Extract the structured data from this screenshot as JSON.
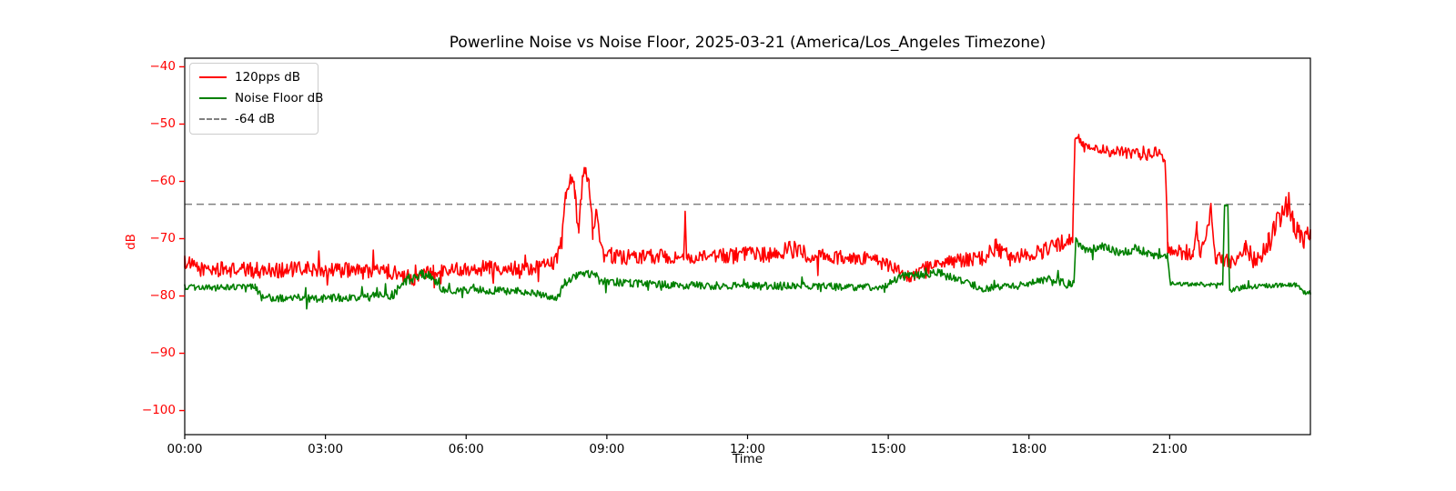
{
  "figure": {
    "background": "#ffffff"
  },
  "chart_data": {
    "type": "line",
    "title": "Powerline Noise vs Noise Floor, 2025-03-21 (America/Los_Angeles Timezone)",
    "xlabel": "Time",
    "ylabel": "dB",
    "x_unit": "hours_local",
    "xlim": [
      0,
      24
    ],
    "ylim": [
      -104.2,
      -38.5
    ],
    "grid": false,
    "x_tick_color": "#000000",
    "y_tick_color": "#ff0000",
    "axis_color": "#000000",
    "x_ticks": [
      {
        "t": 0,
        "label": "00:00"
      },
      {
        "t": 3,
        "label": "03:00"
      },
      {
        "t": 6,
        "label": "06:00"
      },
      {
        "t": 9,
        "label": "09:00"
      },
      {
        "t": 12,
        "label": "12:00"
      },
      {
        "t": 15,
        "label": "15:00"
      },
      {
        "t": 18,
        "label": "18:00"
      },
      {
        "t": 21,
        "label": "21:00"
      }
    ],
    "y_ticks": [
      {
        "v": -40,
        "label": "−40"
      },
      {
        "v": -50,
        "label": "−50"
      },
      {
        "v": -60,
        "label": "−60"
      },
      {
        "v": -70,
        "label": "−70"
      },
      {
        "v": -80,
        "label": "−80"
      },
      {
        "v": -90,
        "label": "−90"
      },
      {
        "v": -100,
        "label": "−100"
      }
    ],
    "threshold_line": {
      "value": -64,
      "color": "#808080",
      "style": "dashed",
      "label": "-64 dB"
    },
    "legend": {
      "position": "upper-left",
      "entries": [
        {
          "label": "120pps dB",
          "color": "#ff0000",
          "style": "solid"
        },
        {
          "label": "Noise Floor dB",
          "color": "#008000",
          "style": "solid"
        },
        {
          "label": "-64 dB",
          "color": "#808080",
          "style": "dashed"
        }
      ]
    },
    "sampling": {
      "dt_hours": 0.02,
      "seed": 1234
    },
    "series": [
      {
        "name": "120pps dB",
        "color": "#ff0000",
        "style": "solid",
        "keyframes_format": [
          "time_hours",
          "dB",
          "noise_halfamp_dB"
        ],
        "keyframes": [
          [
            0.0,
            -74.0,
            1.2
          ],
          [
            0.3,
            -75.3,
            1.3
          ],
          [
            1.5,
            -75.5,
            1.4
          ],
          [
            3.0,
            -75.3,
            1.4
          ],
          [
            4.4,
            -75.8,
            1.3
          ],
          [
            4.9,
            -77.0,
            1.2
          ],
          [
            5.3,
            -75.5,
            1.2
          ],
          [
            6.5,
            -75.0,
            1.3
          ],
          [
            7.4,
            -75.2,
            1.2
          ],
          [
            7.9,
            -74.0,
            1.3
          ],
          [
            8.05,
            -70.0,
            1.5
          ],
          [
            8.13,
            -61.5,
            1.5
          ],
          [
            8.22,
            -59.5,
            1.2
          ],
          [
            8.32,
            -62.0,
            1.8
          ],
          [
            8.4,
            -69.5,
            1.5
          ],
          [
            8.48,
            -60.0,
            1.8
          ],
          [
            8.55,
            -57.5,
            1.2
          ],
          [
            8.62,
            -60.0,
            1.8
          ],
          [
            8.7,
            -69.0,
            1.8
          ],
          [
            8.77,
            -64.5,
            1.2
          ],
          [
            8.85,
            -71.0,
            1.4
          ],
          [
            9.1,
            -73.3,
            1.3
          ],
          [
            10.3,
            -73.0,
            1.3
          ],
          [
            10.64,
            -73.5,
            0.9
          ],
          [
            10.67,
            -65.6,
            0.4
          ],
          [
            10.7,
            -73.5,
            0.9
          ],
          [
            11.5,
            -73.0,
            1.4
          ],
          [
            12.5,
            -72.8,
            1.5
          ],
          [
            12.9,
            -71.8,
            1.6
          ],
          [
            13.4,
            -73.0,
            1.4
          ],
          [
            14.5,
            -73.5,
            1.3
          ],
          [
            15.1,
            -75.0,
            1.2
          ],
          [
            15.45,
            -76.8,
            1.0
          ],
          [
            15.8,
            -75.0,
            1.2
          ],
          [
            16.3,
            -74.0,
            1.3
          ],
          [
            17.0,
            -73.5,
            1.3
          ],
          [
            17.3,
            -71.5,
            1.5
          ],
          [
            17.6,
            -73.5,
            1.3
          ],
          [
            18.2,
            -72.5,
            1.4
          ],
          [
            18.6,
            -71.0,
            1.5
          ],
          [
            18.93,
            -70.5,
            1.5
          ],
          [
            18.98,
            -52.2,
            0.6
          ],
          [
            19.06,
            -52.5,
            0.8
          ],
          [
            19.15,
            -54.0,
            0.9
          ],
          [
            19.5,
            -54.5,
            1.0
          ],
          [
            20.0,
            -55.0,
            1.0
          ],
          [
            20.5,
            -55.5,
            1.0
          ],
          [
            20.72,
            -54.8,
            1.0
          ],
          [
            20.9,
            -56.0,
            0.9
          ],
          [
            20.96,
            -71.5,
            1.2
          ],
          [
            21.2,
            -72.5,
            1.4
          ],
          [
            21.5,
            -72.0,
            1.6
          ],
          [
            21.58,
            -68.0,
            1.2
          ],
          [
            21.66,
            -73.0,
            1.4
          ],
          [
            21.88,
            -65.0,
            1.5
          ],
          [
            21.98,
            -73.5,
            1.3
          ],
          [
            22.4,
            -74.3,
            1.3
          ],
          [
            22.62,
            -71.5,
            1.5
          ],
          [
            22.85,
            -74.0,
            1.4
          ],
          [
            23.1,
            -71.0,
            2.0
          ],
          [
            23.35,
            -66.5,
            2.4
          ],
          [
            23.5,
            -64.5,
            2.2
          ],
          [
            23.65,
            -68.0,
            2.4
          ],
          [
            23.85,
            -70.0,
            1.8
          ],
          [
            24.0,
            -69.0,
            1.4
          ]
        ]
      },
      {
        "name": "Noise Floor dB",
        "color": "#008000",
        "style": "solid",
        "keyframes_format": [
          "time_hours",
          "dB",
          "noise_halfamp_dB"
        ],
        "keyframes": [
          [
            0.0,
            -78.5,
            0.5
          ],
          [
            1.5,
            -78.4,
            0.5
          ],
          [
            1.65,
            -80.3,
            0.7
          ],
          [
            3.0,
            -80.4,
            0.7
          ],
          [
            4.4,
            -80.0,
            0.8
          ],
          [
            4.8,
            -77.0,
            1.0
          ],
          [
            5.05,
            -75.9,
            0.8
          ],
          [
            5.25,
            -76.8,
            0.9
          ],
          [
            5.5,
            -79.0,
            0.6
          ],
          [
            6.5,
            -79.0,
            0.7
          ],
          [
            7.3,
            -79.3,
            0.6
          ],
          [
            7.95,
            -80.3,
            0.6
          ],
          [
            8.1,
            -77.8,
            0.8
          ],
          [
            8.35,
            -76.3,
            0.8
          ],
          [
            8.6,
            -75.9,
            0.8
          ],
          [
            8.85,
            -77.3,
            0.7
          ],
          [
            9.5,
            -77.8,
            0.7
          ],
          [
            11.0,
            -78.2,
            0.7
          ],
          [
            13.0,
            -78.3,
            0.7
          ],
          [
            14.8,
            -78.5,
            0.6
          ],
          [
            15.35,
            -76.6,
            0.8
          ],
          [
            15.9,
            -75.9,
            0.9
          ],
          [
            16.35,
            -76.6,
            0.8
          ],
          [
            17.0,
            -78.7,
            0.6
          ],
          [
            17.8,
            -78.2,
            0.7
          ],
          [
            18.4,
            -77.3,
            0.9
          ],
          [
            18.85,
            -78.0,
            0.8
          ],
          [
            18.96,
            -77.5,
            0.5
          ],
          [
            19.0,
            -70.3,
            0.5
          ],
          [
            19.15,
            -71.8,
            0.7
          ],
          [
            19.6,
            -71.4,
            0.7
          ],
          [
            19.95,
            -72.6,
            0.8
          ],
          [
            20.3,
            -71.6,
            0.8
          ],
          [
            20.6,
            -72.9,
            0.6
          ],
          [
            20.95,
            -73.0,
            0.5
          ],
          [
            21.02,
            -77.9,
            0.4
          ],
          [
            22.13,
            -78.0,
            0.4
          ],
          [
            22.17,
            -63.5,
            0.7
          ],
          [
            22.24,
            -64.0,
            0.7
          ],
          [
            22.28,
            -79.0,
            0.4
          ],
          [
            22.6,
            -78.4,
            0.5
          ],
          [
            23.7,
            -78.1,
            0.4
          ],
          [
            23.85,
            -79.4,
            0.4
          ],
          [
            24.0,
            -79.4,
            0.3
          ]
        ]
      }
    ]
  }
}
